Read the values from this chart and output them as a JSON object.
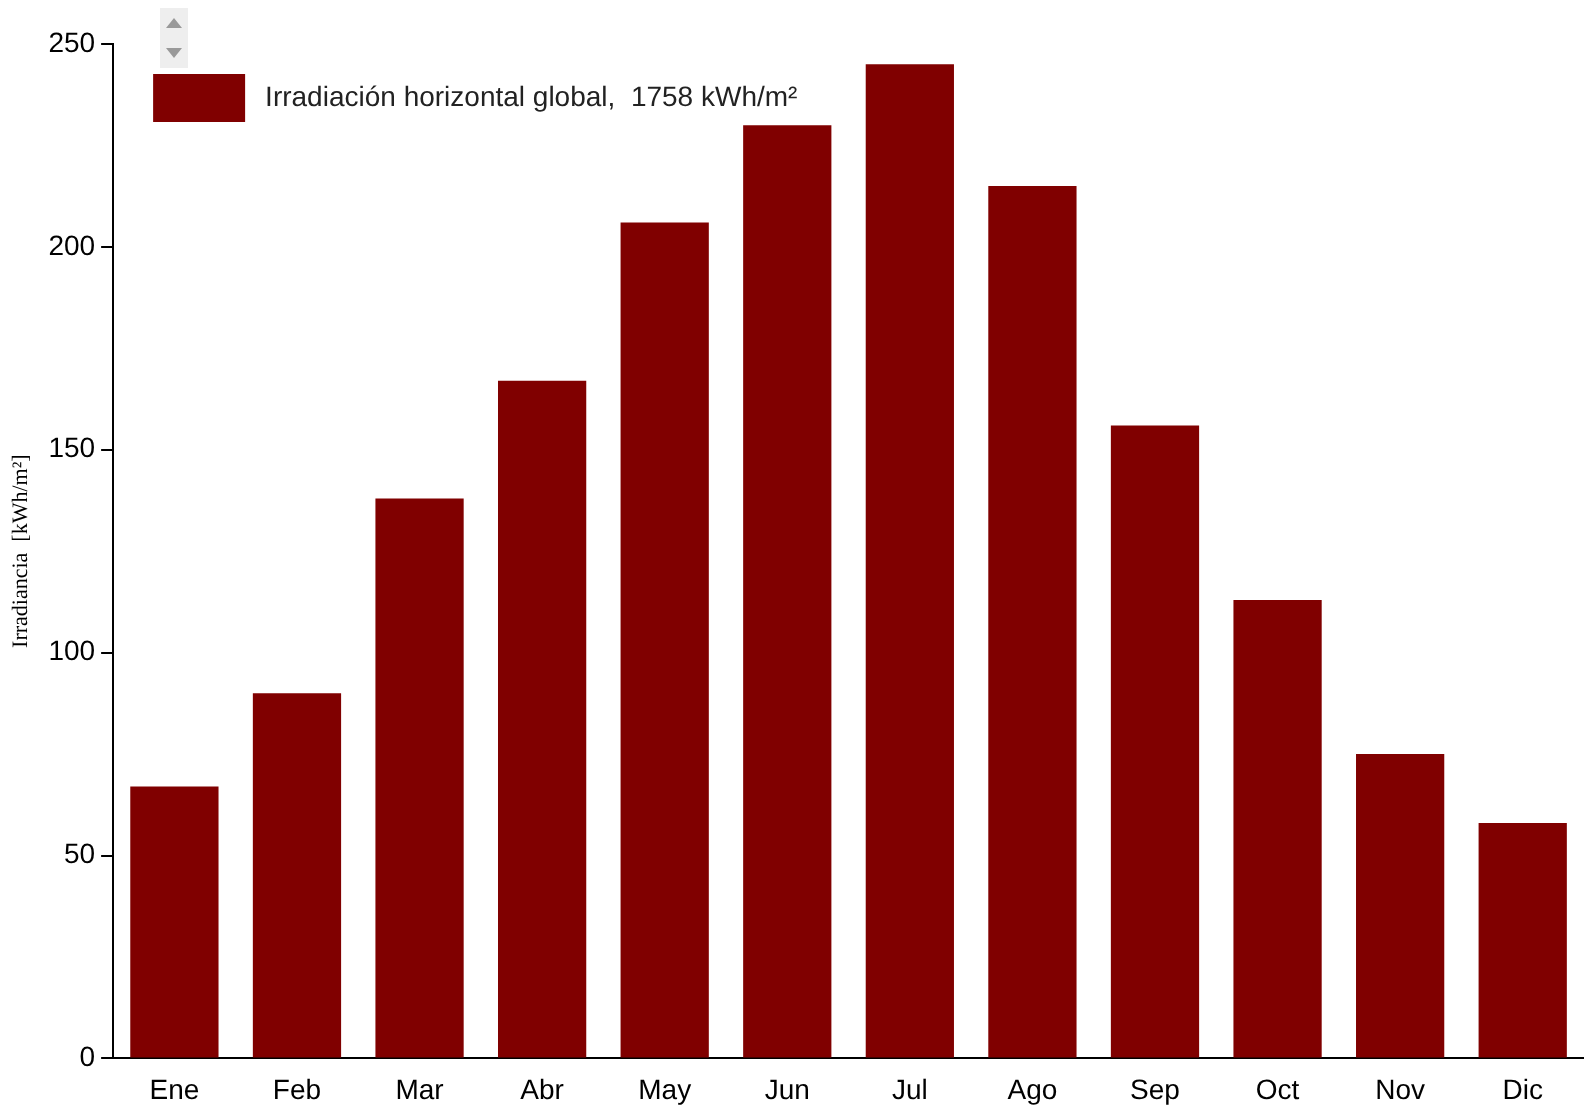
{
  "chart_data": {
    "type": "bar",
    "ylabel": "Irradiancia  [kWh/m²]",
    "categories": [
      "Ene",
      "Feb",
      "Mar",
      "Abr",
      "May",
      "Jun",
      "Jul",
      "Ago",
      "Sep",
      "Oct",
      "Nov",
      "Dic"
    ],
    "series": [
      {
        "name": "Irradiación horizontal global,  1758 kWh/m²",
        "color": "#800000",
        "values": [
          67,
          90,
          138,
          167,
          206,
          230,
          245,
          215,
          156,
          113,
          75,
          58
        ]
      }
    ],
    "ylim": [
      0,
      250
    ],
    "yticks": [
      0,
      50,
      100,
      150,
      200,
      250
    ],
    "grid": false,
    "legend": "top left"
  }
}
